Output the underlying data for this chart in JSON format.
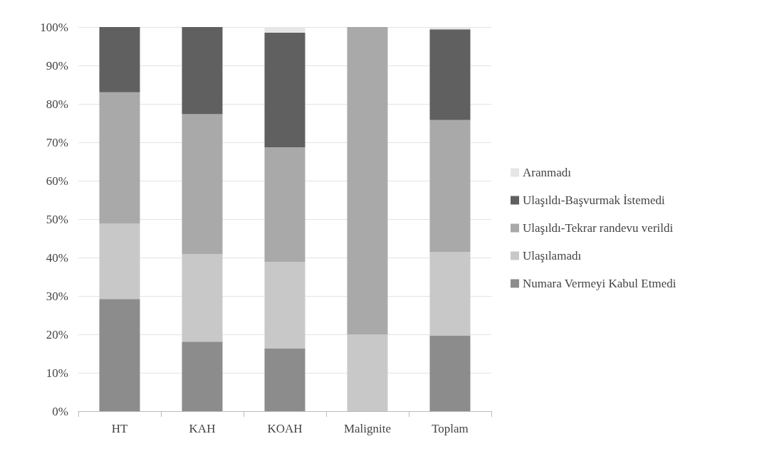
{
  "chart_data": {
    "type": "bar",
    "stacked": true,
    "categories": [
      "HT",
      "KAH",
      "KOAH",
      "Malignite",
      "Toplam"
    ],
    "series": [
      {
        "name": "Numara Vermeyi Kabul Etmedi",
        "color": "#8c8c8c",
        "values": [
          29.2,
          18.1,
          16.4,
          0,
          19.7
        ]
      },
      {
        "name": "Ulaşılamadı",
        "color": "#c8c8c8",
        "values": [
          19.6,
          22.8,
          22.5,
          20,
          21.8
        ]
      },
      {
        "name": "Ulaşıldı-Tekrar randevu verildi",
        "color": "#a9a9a9",
        "values": [
          34.2,
          36.4,
          29.8,
          80,
          34.3
        ]
      },
      {
        "name": "Ulaşıldı-Başvurmak İstemedi",
        "color": "#606060",
        "values": [
          17,
          22.7,
          29.8,
          0,
          23.6
        ]
      },
      {
        "name": "Aranmadı",
        "color": "#e6e6e6",
        "values": [
          0,
          0,
          1.5,
          0,
          0.6
        ]
      }
    ],
    "ylim": [
      0,
      100
    ],
    "yticks": [
      {
        "value": 0,
        "label": "0%"
      },
      {
        "value": 10,
        "label": "10%"
      },
      {
        "value": 20,
        "label": "20%"
      },
      {
        "value": 30,
        "label": "30%"
      },
      {
        "value": 40,
        "label": "40%"
      },
      {
        "value": 50,
        "label": "50%"
      },
      {
        "value": 60,
        "label": "60%"
      },
      {
        "value": 70,
        "label": "70%"
      },
      {
        "value": 80,
        "label": "80%"
      },
      {
        "value": 90,
        "label": "90%"
      },
      {
        "value": 100,
        "label": "100%"
      }
    ],
    "grid": "y",
    "legend": "right"
  }
}
